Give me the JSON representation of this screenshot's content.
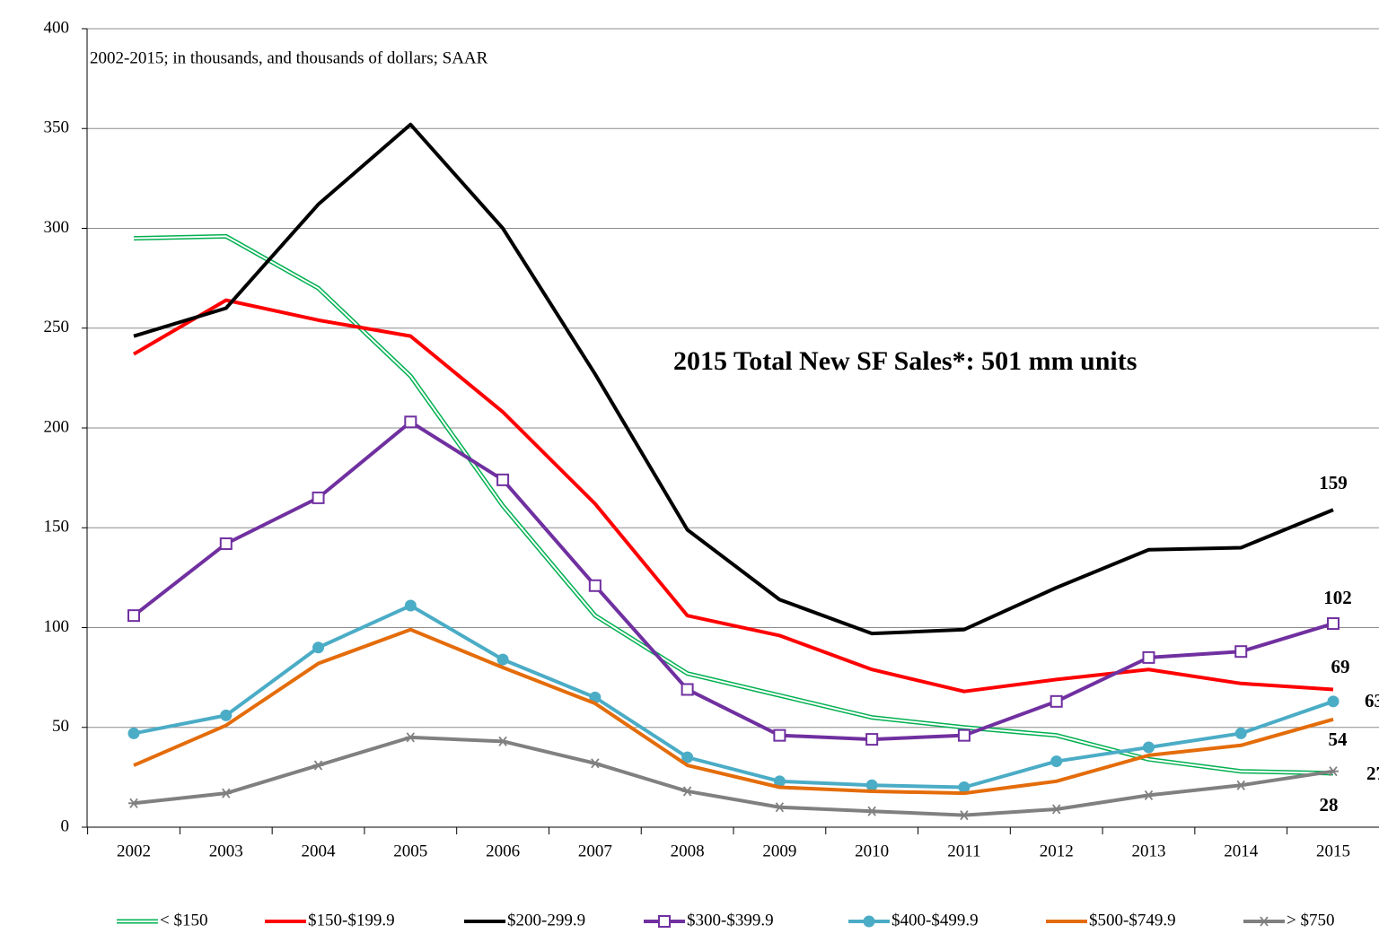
{
  "chart_data": {
    "type": "line",
    "subtitle": "2002-2015; in thousands, and thousands of dollars; SAAR",
    "annotation": "2015 Total New SF Sales*: 501 mm units",
    "categories": [
      "2002",
      "2003",
      "2004",
      "2005",
      "2006",
      "2007",
      "2008",
      "2009",
      "2010",
      "2011",
      "2012",
      "2013",
      "2014",
      "2015"
    ],
    "series": [
      {
        "name": "< $150",
        "color": "#00b050",
        "style": "double",
        "marker": "none",
        "values": [
          295,
          296,
          270,
          226,
          161,
          106,
          77,
          66,
          55,
          50,
          46,
          34,
          28,
          27
        ]
      },
      {
        "name": "$150-$199.9",
        "color": "#ff0000",
        "style": "solid",
        "marker": "none",
        "values": [
          237,
          264,
          254,
          246,
          208,
          162,
          106,
          96,
          79,
          68,
          74,
          79,
          72,
          69
        ]
      },
      {
        "name": "$200-299.9",
        "color": "#000000",
        "style": "solid",
        "marker": "none",
        "values": [
          246,
          260,
          312,
          352,
          300,
          227,
          149,
          114,
          97,
          99,
          120,
          139,
          140,
          159
        ]
      },
      {
        "name": "$300-$399.9",
        "color": "#7030a0",
        "style": "solid",
        "marker": "square",
        "values": [
          106,
          142,
          165,
          203,
          174,
          121,
          69,
          46,
          44,
          46,
          63,
          85,
          88,
          102
        ]
      },
      {
        "name": "$400-$499.9",
        "color": "#4bacc6",
        "style": "solid",
        "marker": "circle",
        "values": [
          47,
          56,
          90,
          111,
          84,
          65,
          35,
          23,
          21,
          20,
          33,
          40,
          47,
          63
        ]
      },
      {
        "name": "$500-$749.9",
        "color": "#e46c0a",
        "style": "solid",
        "marker": "none",
        "values": [
          31,
          51,
          82,
          99,
          80,
          62,
          31,
          20,
          18,
          17,
          23,
          36,
          41,
          54
        ]
      },
      {
        "name": "> $750",
        "color": "#808080",
        "style": "solid",
        "marker": "star",
        "values": [
          12,
          17,
          31,
          45,
          43,
          32,
          18,
          10,
          8,
          6,
          9,
          16,
          21,
          28
        ]
      }
    ],
    "ylim": [
      0,
      400
    ],
    "yticks": [
      0,
      50,
      100,
      150,
      200,
      250,
      300,
      350,
      400
    ],
    "grid": true,
    "legend": "bottom"
  }
}
